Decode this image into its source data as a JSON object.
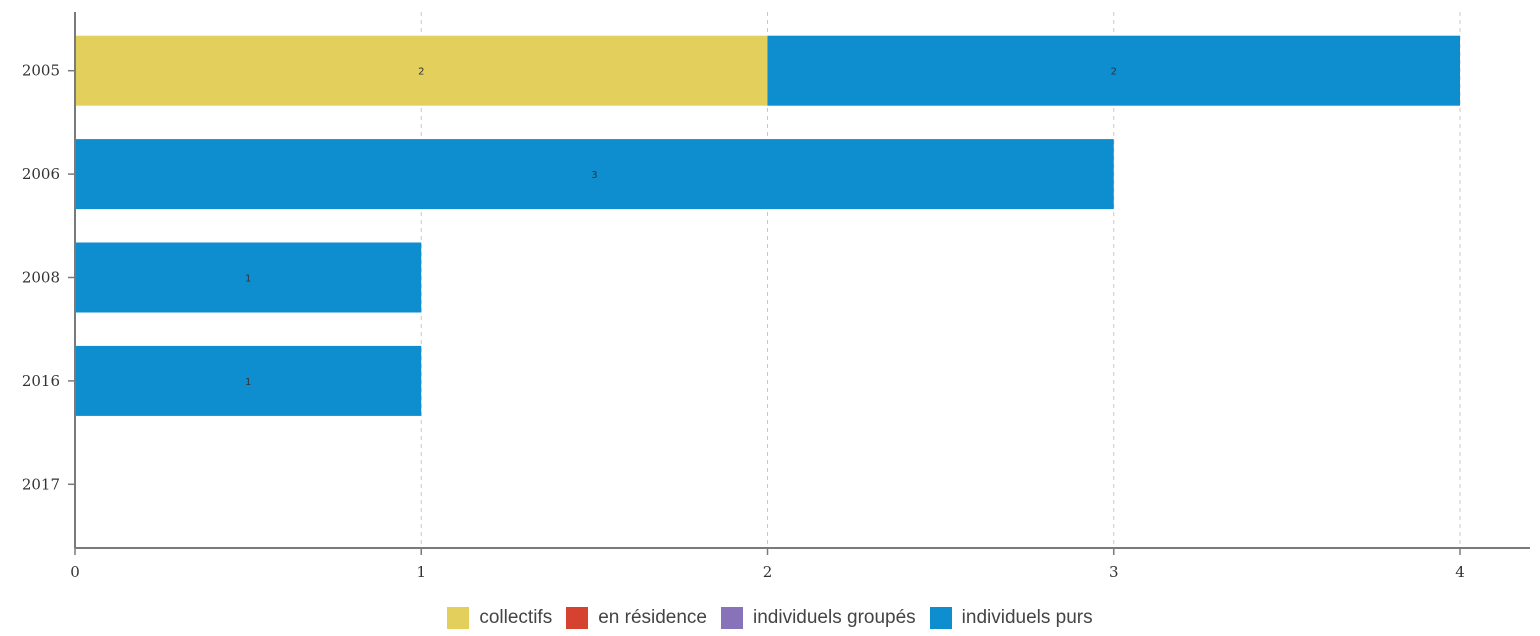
{
  "chart_data": {
    "type": "bar",
    "orientation": "horizontal",
    "stacked": true,
    "categories": [
      "2005",
      "2006",
      "2008",
      "2016",
      "2017"
    ],
    "series": [
      {
        "name": "collectifs",
        "color": "#e3cf5b",
        "values": [
          2,
          0,
          0,
          0,
          0
        ]
      },
      {
        "name": "en résidence",
        "color": "#d64230",
        "values": [
          0,
          0,
          0,
          0,
          0
        ]
      },
      {
        "name": "individuels groupés",
        "color": "#8873ba",
        "values": [
          0,
          0,
          0,
          0,
          0
        ]
      },
      {
        "name": "individuels purs",
        "color": "#0f8ecf",
        "values": [
          2,
          3,
          1,
          1,
          0
        ]
      }
    ],
    "xlim": [
      0,
      4
    ],
    "x_ticks": [
      "0",
      "1",
      "2",
      "3",
      "4"
    ],
    "grid": true,
    "legend_position": "bottom-center",
    "title": "",
    "xlabel": "",
    "ylabel": ""
  }
}
